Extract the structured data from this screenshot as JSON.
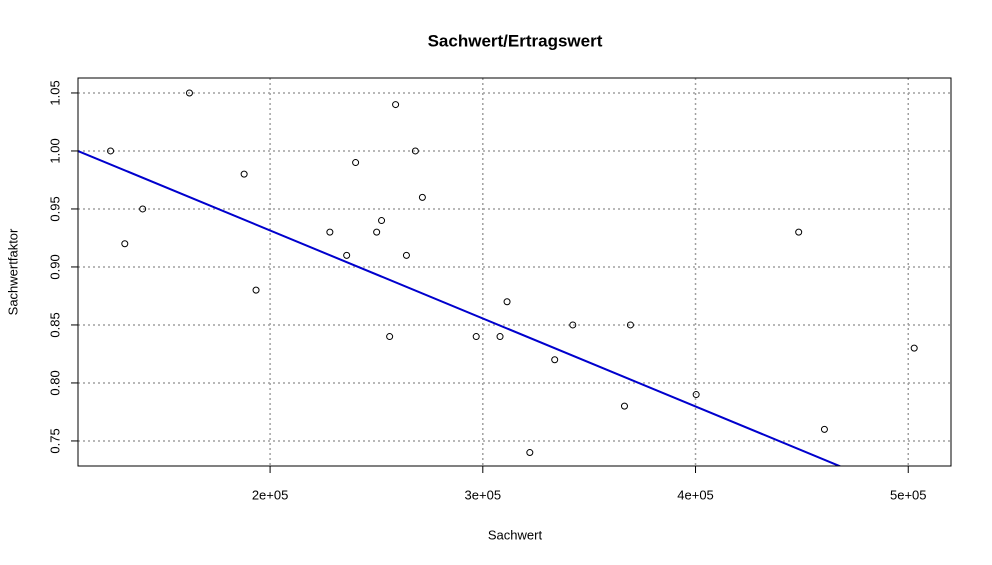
{
  "chart_data": {
    "type": "scatter",
    "title": "Sachwert/Ertragswert",
    "x_label": "Sachwert",
    "y_label": "Sachwertfaktor",
    "x": [
      125000,
      131700,
      140100,
      162100,
      187800,
      193400,
      228100,
      236000,
      240200,
      250100,
      252400,
      256200,
      259000,
      264100,
      268300,
      271600,
      296900,
      308100,
      311400,
      322100,
      333800,
      342300,
      366600,
      369400,
      400300,
      448500,
      460600,
      502800
    ],
    "y": [
      1.0,
      0.92,
      0.95,
      1.05,
      0.98,
      0.88,
      0.93,
      0.91,
      0.99,
      0.93,
      0.94,
      0.84,
      1.04,
      0.91,
      1.0,
      0.96,
      0.84,
      0.84,
      0.87,
      0.74,
      0.82,
      0.85,
      0.78,
      0.85,
      0.79,
      0.93,
      0.76,
      0.83
    ],
    "color": "#000000",
    "abline": {
      "intercept": 1.0832,
      "slope": -7.587e-07,
      "color": "#0000cd"
    },
    "xlim": [
      109700,
      520100
    ],
    "ylim": [
      0.7284,
      1.0629
    ],
    "xticks": [
      {
        "value": 200000,
        "label": "2e+05"
      },
      {
        "value": 300000,
        "label": "3e+05"
      },
      {
        "value": 400000,
        "label": "4e+05"
      },
      {
        "value": 500000,
        "label": "5e+05"
      }
    ],
    "yticks": [
      0.75,
      {
        "value": 0.8,
        "label": "0.80"
      },
      0.85,
      {
        "value": 0.9,
        "label": "0.90"
      },
      0.95,
      {
        "value": 1.0,
        "label": "1.00"
      },
      1.05
    ],
    "grid": true
  }
}
